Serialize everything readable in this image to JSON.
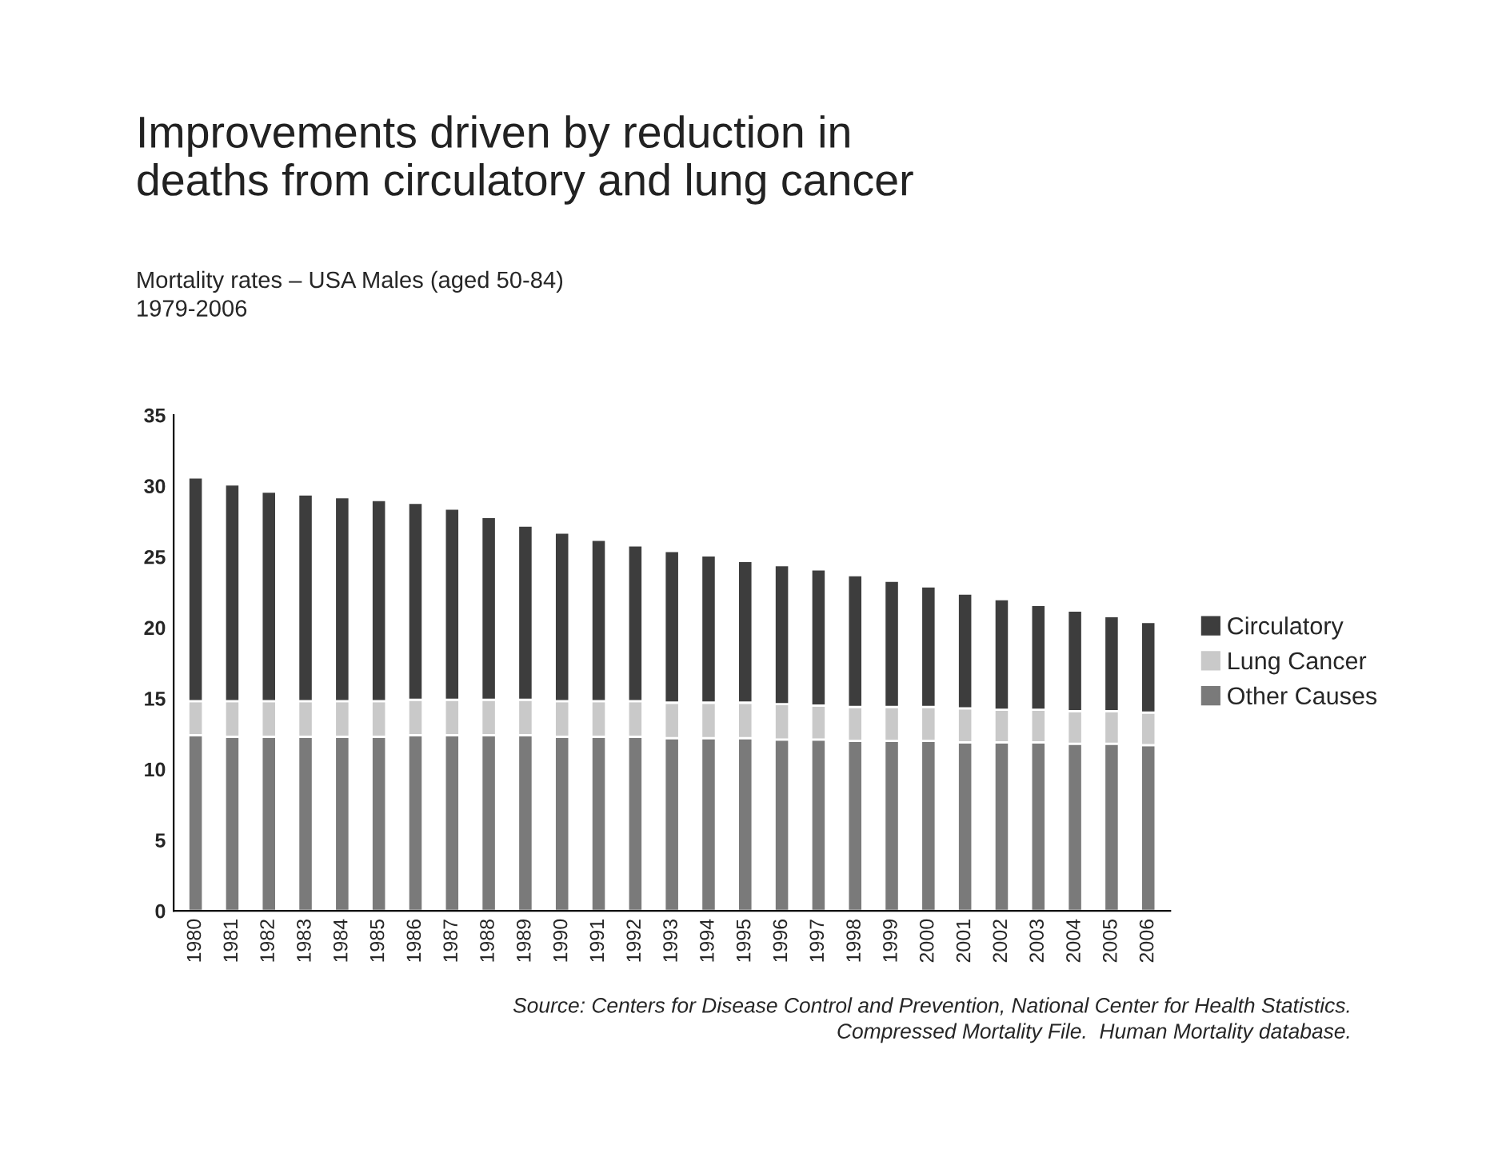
{
  "chart_data": {
    "type": "bar",
    "stacked": true,
    "title": "Improvements driven by reduction in\ndeaths from circulatory and lung cancer",
    "subtitle": "Mortality rates – USA Males (aged 50-84)\n1979-2006",
    "categories": [
      "1980",
      "1981",
      "1982",
      "1983",
      "1984",
      "1985",
      "1986",
      "1987",
      "1988",
      "1989",
      "1990",
      "1991",
      "1992",
      "1993",
      "1994",
      "1995",
      "1996",
      "1997",
      "1998",
      "1999",
      "2000",
      "2001",
      "2002",
      "2003",
      "2004",
      "2005",
      "2006"
    ],
    "series": [
      {
        "name": "Other Causes",
        "color": "#7a7a7a",
        "values": [
          12.4,
          12.3,
          12.3,
          12.3,
          12.3,
          12.3,
          12.4,
          12.4,
          12.4,
          12.4,
          12.3,
          12.3,
          12.3,
          12.2,
          12.2,
          12.2,
          12.1,
          12.1,
          12.0,
          12.0,
          12.0,
          11.9,
          11.9,
          11.9,
          11.8,
          11.8,
          11.7
        ]
      },
      {
        "name": "Lung Cancer",
        "color": "#c9c9c9",
        "values": [
          2.4,
          2.5,
          2.5,
          2.5,
          2.5,
          2.5,
          2.5,
          2.5,
          2.5,
          2.5,
          2.5,
          2.5,
          2.5,
          2.5,
          2.5,
          2.5,
          2.5,
          2.4,
          2.4,
          2.4,
          2.4,
          2.4,
          2.3,
          2.3,
          2.3,
          2.3,
          2.3
        ]
      },
      {
        "name": "Circulatory",
        "color": "#3d3d3d",
        "values": [
          15.8,
          15.3,
          14.8,
          14.6,
          14.4,
          14.2,
          13.9,
          13.5,
          12.9,
          12.3,
          11.9,
          11.4,
          11.0,
          10.7,
          10.4,
          10.0,
          9.8,
          9.6,
          9.3,
          8.9,
          8.5,
          8.1,
          7.8,
          7.4,
          7.1,
          6.7,
          6.4
        ]
      }
    ],
    "ylim": [
      0,
      35
    ],
    "yticks": [
      0,
      5,
      10,
      15,
      20,
      25,
      30,
      35
    ],
    "grid": false,
    "legend": "right",
    "annotations": [
      "Source: Centers for Disease Control and Prevention, National Center for Health Statistics.\nCompressed Mortality File.  Human Mortality database."
    ]
  }
}
